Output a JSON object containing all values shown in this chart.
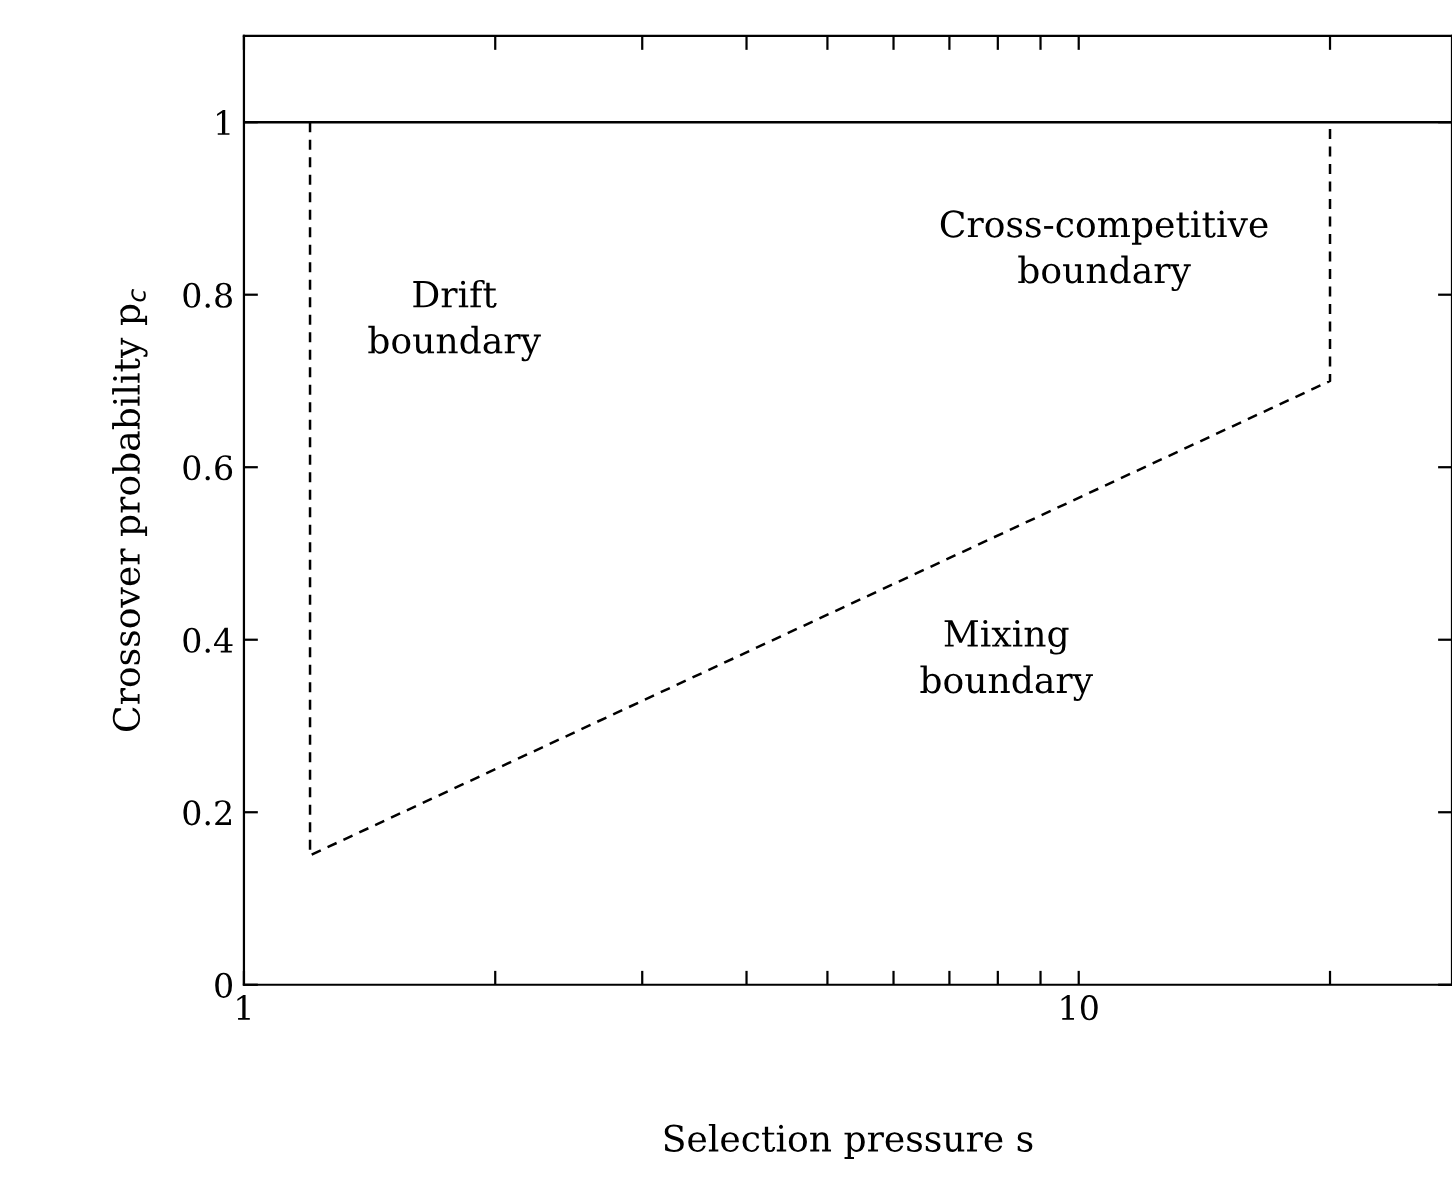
{
  "chart_data": {
    "type": "line",
    "xlabel": "Selection pressure s",
    "ylabel": "Crossover probability p$_{c}$",
    "log": "x",
    "grid": false,
    "legend": false,
    "xlim": [
      1,
      28
    ],
    "ylim": [
      0,
      1.1
    ],
    "xticks": [
      1,
      {
        "value": 2,
        "label": null
      },
      {
        "value": 3,
        "label": null
      },
      {
        "value": 4,
        "label": null
      },
      {
        "value": 5,
        "label": null
      },
      {
        "value": 6,
        "label": null
      },
      {
        "value": 7,
        "label": null
      },
      {
        "value": 8,
        "label": null
      },
      {
        "value": 9,
        "label": null
      },
      10,
      {
        "value": 20,
        "label": null
      }
    ],
    "yticks": [
      0,
      0.2,
      0.4,
      0.6,
      0.8,
      1
    ],
    "series": [
      {
        "color": "#000000",
        "line_style": "solid",
        "x": [
          1,
          28
        ],
        "values": [
          1,
          1
        ]
      },
      {
        "color": "#000000",
        "line_style": "dashed",
        "x": [
          1.2,
          1.2,
          20,
          20
        ],
        "values": [
          1,
          0.15,
          0.7,
          1
        ]
      }
    ],
    "annotations": [
      "Drift\nboundary",
      "Cross-competitive\nboundary",
      "Mixing\nboundary"
    ]
  }
}
